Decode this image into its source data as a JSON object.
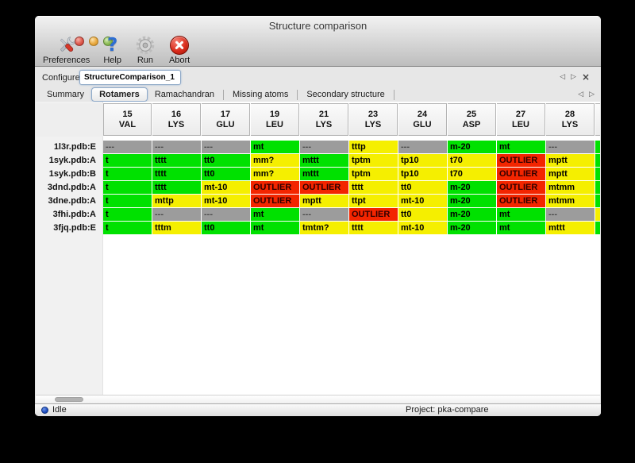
{
  "window": {
    "title": "Structure comparison"
  },
  "toolbar": {
    "items": [
      {
        "id": "preferences",
        "label": "Preferences"
      },
      {
        "id": "help",
        "label": "Help"
      },
      {
        "id": "run",
        "label": "Run"
      },
      {
        "id": "abort",
        "label": "Abort"
      }
    ]
  },
  "configure": {
    "label": "Configure",
    "task_name": "StructureComparison_1"
  },
  "task_nav": {
    "prev": "◁",
    "next": "▷",
    "close": "×"
  },
  "tabs": {
    "items": [
      {
        "label": "Summary",
        "selected": false
      },
      {
        "label": "Rotamers",
        "selected": true
      },
      {
        "label": "Ramachandran",
        "selected": false
      },
      {
        "label": "Missing atoms",
        "selected": false
      },
      {
        "label": "Secondary structure",
        "selected": false
      }
    ],
    "nav_prev": "◁",
    "nav_next": "▷"
  },
  "rotamer_table": {
    "status_colors": {
      "favored": "#00e100",
      "allowed": "#f5ef00",
      "outlier": "#f32500",
      "none": "#9c9c9c"
    },
    "columns": [
      {
        "number": "15",
        "residue": "VAL"
      },
      {
        "number": "16",
        "residue": "LYS"
      },
      {
        "number": "17",
        "residue": "GLU"
      },
      {
        "number": "19",
        "residue": "LEU"
      },
      {
        "number": "21",
        "residue": "LYS"
      },
      {
        "number": "23",
        "residue": "LYS"
      },
      {
        "number": "24",
        "residue": "GLU"
      },
      {
        "number": "25",
        "residue": "ASP"
      },
      {
        "number": "27",
        "residue": "LEU"
      },
      {
        "number": "28",
        "residue": "LYS"
      }
    ],
    "rows": [
      {
        "label": "1l3r.pdb:E",
        "cells": [
          {
            "text": "---",
            "status": "none"
          },
          {
            "text": "---",
            "status": "none"
          },
          {
            "text": "---",
            "status": "none"
          },
          {
            "text": "mt",
            "status": "favored"
          },
          {
            "text": "---",
            "status": "none"
          },
          {
            "text": "tttp",
            "status": "allowed"
          },
          {
            "text": "---",
            "status": "none"
          },
          {
            "text": "m-20",
            "status": "favored"
          },
          {
            "text": "mt",
            "status": "favored"
          },
          {
            "text": "---",
            "status": "none"
          }
        ],
        "clipped": "favored"
      },
      {
        "label": "1syk.pdb:A",
        "cells": [
          {
            "text": "t",
            "status": "favored"
          },
          {
            "text": "tttt",
            "status": "favored"
          },
          {
            "text": "tt0",
            "status": "favored"
          },
          {
            "text": "mm?",
            "status": "allowed"
          },
          {
            "text": "mttt",
            "status": "favored"
          },
          {
            "text": "tptm",
            "status": "allowed"
          },
          {
            "text": "tp10",
            "status": "allowed"
          },
          {
            "text": "t70",
            "status": "allowed"
          },
          {
            "text": "OUTLIER",
            "status": "outlier"
          },
          {
            "text": "mptt",
            "status": "allowed"
          }
        ],
        "clipped": "favored"
      },
      {
        "label": "1syk.pdb:B",
        "cells": [
          {
            "text": "t",
            "status": "favored"
          },
          {
            "text": "tttt",
            "status": "favored"
          },
          {
            "text": "tt0",
            "status": "favored"
          },
          {
            "text": "mm?",
            "status": "allowed"
          },
          {
            "text": "mttt",
            "status": "favored"
          },
          {
            "text": "tptm",
            "status": "allowed"
          },
          {
            "text": "tp10",
            "status": "allowed"
          },
          {
            "text": "t70",
            "status": "allowed"
          },
          {
            "text": "OUTLIER",
            "status": "outlier"
          },
          {
            "text": "mptt",
            "status": "allowed"
          }
        ],
        "clipped": "favored"
      },
      {
        "label": "3dnd.pdb:A",
        "cells": [
          {
            "text": "t",
            "status": "favored"
          },
          {
            "text": "tttt",
            "status": "favored"
          },
          {
            "text": "mt-10",
            "status": "allowed"
          },
          {
            "text": "OUTLIER",
            "status": "outlier"
          },
          {
            "text": "OUTLIER",
            "status": "outlier"
          },
          {
            "text": "tttt",
            "status": "allowed"
          },
          {
            "text": "tt0",
            "status": "allowed"
          },
          {
            "text": "m-20",
            "status": "favored"
          },
          {
            "text": "OUTLIER",
            "status": "outlier"
          },
          {
            "text": "mtmm",
            "status": "allowed"
          }
        ],
        "clipped": "favored"
      },
      {
        "label": "3dne.pdb:A",
        "cells": [
          {
            "text": "t",
            "status": "favored"
          },
          {
            "text": "mttp",
            "status": "allowed"
          },
          {
            "text": "mt-10",
            "status": "allowed"
          },
          {
            "text": "OUTLIER",
            "status": "outlier"
          },
          {
            "text": "mptt",
            "status": "allowed"
          },
          {
            "text": "ttpt",
            "status": "allowed"
          },
          {
            "text": "mt-10",
            "status": "allowed"
          },
          {
            "text": "m-20",
            "status": "favored"
          },
          {
            "text": "OUTLIER",
            "status": "outlier"
          },
          {
            "text": "mtmm",
            "status": "allowed"
          }
        ],
        "clipped": "favored"
      },
      {
        "label": "3fhi.pdb:A",
        "cells": [
          {
            "text": "t",
            "status": "favored"
          },
          {
            "text": "---",
            "status": "none"
          },
          {
            "text": "---",
            "status": "none"
          },
          {
            "text": "mt",
            "status": "favored"
          },
          {
            "text": "---",
            "status": "none"
          },
          {
            "text": "OUTLIER",
            "status": "outlier"
          },
          {
            "text": "tt0",
            "status": "allowed"
          },
          {
            "text": "m-20",
            "status": "favored"
          },
          {
            "text": "mt",
            "status": "favored"
          },
          {
            "text": "---",
            "status": "none"
          }
        ],
        "clipped": "allowed"
      },
      {
        "label": "3fjq.pdb:E",
        "cells": [
          {
            "text": "t",
            "status": "favored"
          },
          {
            "text": "tttm",
            "status": "allowed"
          },
          {
            "text": "tt0",
            "status": "favored"
          },
          {
            "text": "mt",
            "status": "favored"
          },
          {
            "text": "tmtm?",
            "status": "allowed"
          },
          {
            "text": "tttt",
            "status": "allowed"
          },
          {
            "text": "mt-10",
            "status": "allowed"
          },
          {
            "text": "m-20",
            "status": "favored"
          },
          {
            "text": "mt",
            "status": "favored"
          },
          {
            "text": "mttt",
            "status": "allowed"
          }
        ],
        "clipped": "favored"
      }
    ]
  },
  "statusbar": {
    "status": "Idle",
    "project": "Project: pka-compare"
  }
}
